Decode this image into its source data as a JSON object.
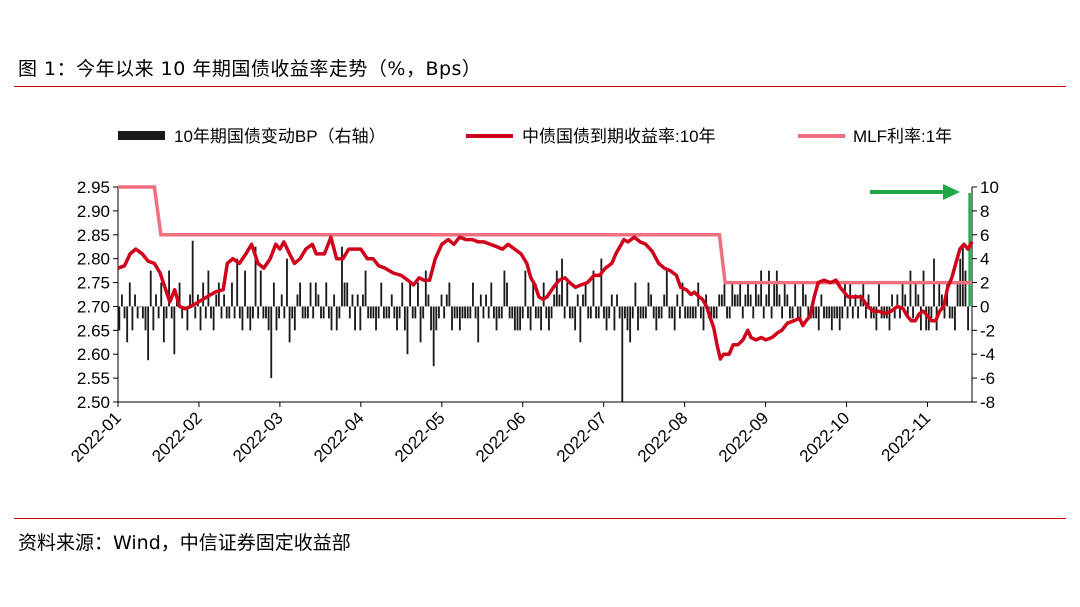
{
  "header": {
    "title": "图 1：今年以来 10 年期国债收益率走势（%，Bps）"
  },
  "footer": {
    "source": "资料来源：Wind，中信证券固定收益部"
  },
  "colors": {
    "bars": "#1a1a1a",
    "yield": "#d0021b",
    "mlf": "#f07080",
    "arrow": "#1ea84a",
    "rule": "#c00000"
  },
  "chart_data": {
    "type": "bar+line",
    "legend": [
      {
        "label": "10年期国债变动BP（右轴）",
        "kind": "bar"
      },
      {
        "label": "中债国债到期收益率:10年",
        "kind": "line"
      },
      {
        "label": "MLF利率:1年",
        "kind": "line"
      }
    ],
    "x_ticks": [
      "2022-01",
      "2022-02",
      "2022-03",
      "2022-04",
      "2022-05",
      "2022-06",
      "2022-07",
      "2022-08",
      "2022-09",
      "2022-10",
      "2022-11"
    ],
    "left_axis": {
      "ticks": [
        "2.95",
        "2.90",
        "2.85",
        "2.80",
        "2.75",
        "2.70",
        "2.65",
        "2.60",
        "2.55",
        "2.50"
      ],
      "min": 2.5,
      "max": 2.95
    },
    "right_axis": {
      "ticks": [
        "10",
        "8",
        "6",
        "4",
        "2",
        "0",
        "-2",
        "-4",
        "-6",
        "-8"
      ],
      "min": -8,
      "max": 10
    },
    "x_range": [
      0,
      10.55
    ],
    "series": [
      {
        "name": "中债国债到期收益率:10年",
        "points": [
          [
            0,
            2.78
          ],
          [
            0.08,
            2.785
          ],
          [
            0.15,
            2.81
          ],
          [
            0.22,
            2.82
          ],
          [
            0.3,
            2.81
          ],
          [
            0.37,
            2.795
          ],
          [
            0.45,
            2.79
          ],
          [
            0.52,
            2.77
          ],
          [
            0.58,
            2.74
          ],
          [
            0.64,
            2.71
          ],
          [
            0.7,
            2.735
          ],
          [
            0.76,
            2.7
          ],
          [
            0.83,
            2.695
          ],
          [
            0.9,
            2.7
          ],
          [
            1.0,
            2.71
          ],
          [
            1.1,
            2.72
          ],
          [
            1.2,
            2.73
          ],
          [
            1.3,
            2.735
          ],
          [
            1.35,
            2.79
          ],
          [
            1.42,
            2.8
          ],
          [
            1.5,
            2.79
          ],
          [
            1.58,
            2.81
          ],
          [
            1.65,
            2.83
          ],
          [
            1.73,
            2.79
          ],
          [
            1.8,
            2.78
          ],
          [
            1.88,
            2.8
          ],
          [
            1.95,
            2.83
          ],
          [
            2.0,
            2.82
          ],
          [
            2.05,
            2.835
          ],
          [
            2.12,
            2.81
          ],
          [
            2.18,
            2.79
          ],
          [
            2.25,
            2.8
          ],
          [
            2.32,
            2.82
          ],
          [
            2.4,
            2.83
          ],
          [
            2.45,
            2.81
          ],
          [
            2.55,
            2.81
          ],
          [
            2.63,
            2.845
          ],
          [
            2.7,
            2.8
          ],
          [
            2.78,
            2.8
          ],
          [
            2.85,
            2.82
          ],
          [
            2.92,
            2.82
          ],
          [
            3.0,
            2.82
          ],
          [
            3.08,
            2.8
          ],
          [
            3.15,
            2.8
          ],
          [
            3.22,
            2.785
          ],
          [
            3.3,
            2.78
          ],
          [
            3.4,
            2.77
          ],
          [
            3.5,
            2.765
          ],
          [
            3.58,
            2.755
          ],
          [
            3.65,
            2.745
          ],
          [
            3.72,
            2.76
          ],
          [
            3.78,
            2.755
          ],
          [
            3.85,
            2.755
          ],
          [
            3.92,
            2.8
          ],
          [
            4.0,
            2.83
          ],
          [
            4.08,
            2.84
          ],
          [
            4.15,
            2.83
          ],
          [
            4.22,
            2.845
          ],
          [
            4.3,
            2.84
          ],
          [
            4.38,
            2.84
          ],
          [
            4.45,
            2.835
          ],
          [
            4.52,
            2.835
          ],
          [
            4.6,
            2.83
          ],
          [
            4.68,
            2.825
          ],
          [
            4.75,
            2.82
          ],
          [
            4.82,
            2.83
          ],
          [
            4.9,
            2.82
          ],
          [
            4.98,
            2.81
          ],
          [
            5.05,
            2.79
          ],
          [
            5.1,
            2.76
          ],
          [
            5.15,
            2.745
          ],
          [
            5.2,
            2.72
          ],
          [
            5.25,
            2.715
          ],
          [
            5.3,
            2.72
          ],
          [
            5.38,
            2.74
          ],
          [
            5.45,
            2.755
          ],
          [
            5.52,
            2.76
          ],
          [
            5.58,
            2.75
          ],
          [
            5.65,
            2.74
          ],
          [
            5.72,
            2.745
          ],
          [
            5.8,
            2.75
          ],
          [
            5.88,
            2.765
          ],
          [
            5.95,
            2.765
          ],
          [
            6.02,
            2.78
          ],
          [
            6.1,
            2.79
          ],
          [
            6.15,
            2.81
          ],
          [
            6.2,
            2.825
          ],
          [
            6.25,
            2.84
          ],
          [
            6.3,
            2.835
          ],
          [
            6.38,
            2.845
          ],
          [
            6.45,
            2.835
          ],
          [
            6.52,
            2.83
          ],
          [
            6.6,
            2.815
          ],
          [
            6.68,
            2.79
          ],
          [
            6.75,
            2.78
          ],
          [
            6.82,
            2.775
          ],
          [
            6.9,
            2.765
          ],
          [
            6.95,
            2.74
          ],
          [
            7.02,
            2.735
          ],
          [
            7.08,
            2.725
          ],
          [
            7.12,
            2.73
          ],
          [
            7.18,
            2.72
          ],
          [
            7.22,
            2.715
          ],
          [
            7.27,
            2.7
          ],
          [
            7.32,
            2.675
          ],
          [
            7.36,
            2.655
          ],
          [
            7.4,
            2.62
          ],
          [
            7.44,
            2.59
          ],
          [
            7.48,
            2.6
          ],
          [
            7.55,
            2.6
          ],
          [
            7.6,
            2.62
          ],
          [
            7.66,
            2.62
          ],
          [
            7.72,
            2.63
          ],
          [
            7.78,
            2.65
          ],
          [
            7.82,
            2.635
          ],
          [
            7.88,
            2.63
          ],
          [
            7.95,
            2.635
          ],
          [
            8.0,
            2.63
          ],
          [
            8.08,
            2.635
          ],
          [
            8.15,
            2.645
          ],
          [
            8.2,
            2.65
          ],
          [
            8.27,
            2.665
          ],
          [
            8.35,
            2.67
          ],
          [
            8.42,
            2.675
          ],
          [
            8.46,
            2.66
          ],
          [
            8.5,
            2.67
          ],
          [
            8.55,
            2.68
          ],
          [
            8.6,
            2.72
          ],
          [
            8.65,
            2.75
          ],
          [
            8.72,
            2.755
          ],
          [
            8.8,
            2.75
          ],
          [
            8.87,
            2.755
          ],
          [
            8.92,
            2.74
          ],
          [
            8.97,
            2.73
          ],
          [
            9.02,
            2.72
          ],
          [
            9.1,
            2.72
          ],
          [
            9.18,
            2.72
          ],
          [
            9.26,
            2.7
          ],
          [
            9.33,
            2.69
          ],
          [
            9.4,
            2.69
          ],
          [
            9.47,
            2.685
          ],
          [
            9.55,
            2.69
          ],
          [
            9.63,
            2.7
          ],
          [
            9.7,
            2.695
          ],
          [
            9.75,
            2.68
          ],
          [
            9.8,
            2.67
          ],
          [
            9.85,
            2.67
          ],
          [
            9.9,
            2.685
          ],
          [
            9.95,
            2.69
          ],
          [
            10.0,
            2.68
          ],
          [
            10.05,
            2.67
          ],
          [
            10.1,
            2.67
          ],
          [
            10.15,
            2.69
          ],
          [
            10.2,
            2.7
          ],
          [
            10.25,
            2.74
          ],
          [
            10.3,
            2.76
          ],
          [
            10.35,
            2.79
          ],
          [
            10.4,
            2.82
          ],
          [
            10.45,
            2.83
          ],
          [
            10.5,
            2.82
          ],
          [
            10.55,
            2.835
          ]
        ]
      },
      {
        "name": "MLF利率:1年",
        "points": [
          [
            0,
            2.95
          ],
          [
            0.45,
            2.95
          ],
          [
            0.53,
            2.85
          ],
          [
            7.43,
            2.85
          ],
          [
            7.5,
            2.75
          ],
          [
            10.55,
            2.75
          ]
        ]
      },
      {
        "name": "10年期国债变动BP（右轴）",
        "values": [
          -2,
          1,
          -1,
          -3,
          2,
          -2,
          1,
          -1,
          0,
          -1,
          -2,
          -4.5,
          3,
          -2,
          1,
          -1,
          2,
          -3,
          -1,
          3,
          -1,
          -4,
          1,
          2,
          -1,
          0,
          -2,
          1,
          5.5,
          -1,
          1,
          -2,
          2,
          -1,
          3,
          -1,
          -2,
          1,
          2,
          -1,
          1,
          -1,
          -1,
          2,
          -1,
          4,
          -1,
          -2,
          3,
          -1,
          -2,
          -1,
          5,
          -1,
          3,
          -1,
          -1,
          -2,
          -6,
          2,
          -2,
          -1,
          1,
          -1,
          4,
          -3,
          -1,
          -2,
          1,
          2,
          -1,
          -1,
          -1,
          2,
          -1,
          2,
          1,
          -1,
          -1,
          2,
          -1,
          -2,
          1,
          -2,
          -1,
          5,
          2,
          2,
          -1,
          1,
          -2,
          1,
          -2,
          1,
          3,
          -1,
          -1,
          -1,
          -2,
          -1,
          2,
          -1,
          -1,
          -1,
          1,
          -1,
          -2,
          -1,
          2,
          -2,
          -4,
          2,
          -1,
          -1,
          2,
          -3,
          -1,
          3,
          1,
          -2,
          -5,
          -2,
          -1,
          1,
          -1,
          1,
          2,
          -2,
          -1,
          -1,
          -2,
          -1,
          -1,
          -1,
          -1,
          2,
          -1,
          -3,
          1,
          -1,
          1,
          -1,
          2,
          -1,
          -2,
          -1,
          -1,
          3,
          2,
          -1,
          -1,
          -2,
          -2,
          -2,
          -1,
          3,
          -1,
          -2,
          2,
          -1,
          -1,
          -2,
          2,
          -1,
          -2,
          -1,
          1,
          3,
          1,
          4,
          -1,
          2,
          -1,
          -1,
          -2,
          1,
          -3,
          1,
          2,
          -1,
          -1,
          3,
          -1,
          -1,
          4,
          -1,
          -2,
          -1,
          1,
          -2,
          1,
          -1,
          -8,
          -1,
          -2,
          -3,
          -1,
          2,
          -2,
          -1,
          -1,
          -1,
          2,
          1,
          -1,
          -2,
          -1,
          -1,
          1,
          3,
          -1,
          -1,
          -2,
          1,
          -1,
          2,
          -1,
          -1,
          -1,
          -1,
          -1,
          2,
          -1,
          -2,
          1,
          -1,
          -1,
          -1,
          -1,
          1,
          1,
          2,
          -1,
          -1,
          2,
          1,
          1,
          2,
          -1,
          1,
          2,
          1,
          -1,
          2,
          1,
          3,
          -1,
          1,
          3,
          -1,
          2,
          3,
          1,
          -1,
          2,
          1,
          -1,
          -1,
          2,
          -1,
          -1,
          2,
          1,
          -1,
          -1,
          -1,
          -1,
          -2,
          1,
          -1,
          -1,
          -1,
          -2,
          -1,
          -1,
          -2,
          -1,
          2,
          -1,
          2,
          -1,
          1,
          -1,
          1,
          2,
          -1,
          1,
          -1,
          -1,
          -2,
          2,
          -1,
          -1,
          -1,
          -2,
          1,
          -1,
          1,
          -1,
          2,
          1,
          -1,
          3,
          -1,
          2,
          1,
          -2,
          3,
          -2,
          -2,
          -1,
          4,
          -2,
          2,
          1,
          -1,
          2,
          -1,
          -1,
          -2,
          2,
          4,
          5,
          3,
          -2,
          9.5
        ]
      }
    ],
    "annotation": {
      "type": "arrow",
      "direction": "right"
    }
  }
}
